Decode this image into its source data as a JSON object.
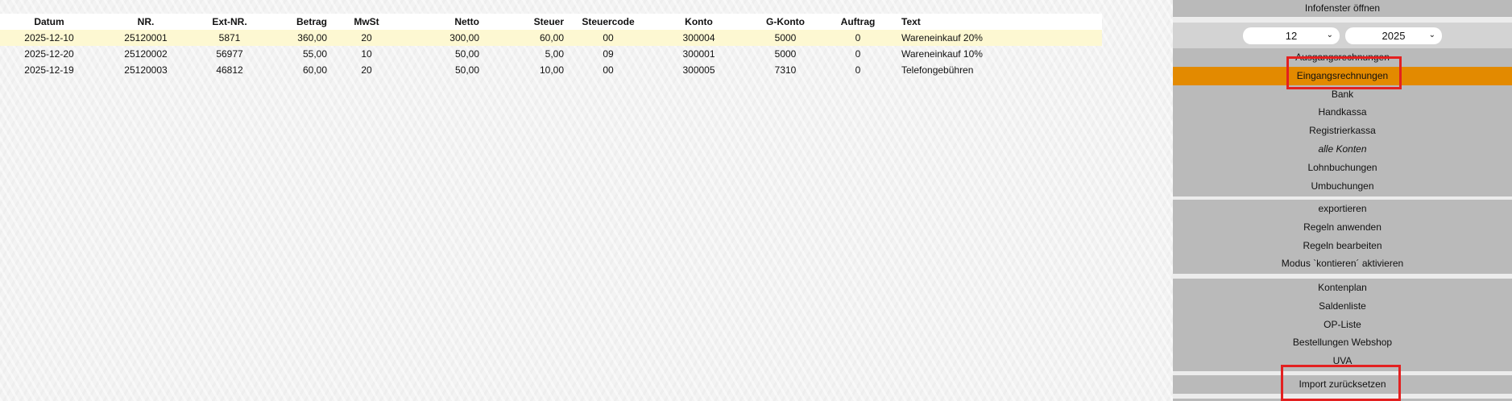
{
  "table": {
    "headers": [
      "Datum",
      "NR.",
      "Ext-NR.",
      "Betrag",
      "MwSt",
      "Netto",
      "Steuer",
      "Steuercode",
      "Konto",
      "G-Konto",
      "Auftrag",
      "Text"
    ],
    "rows": [
      [
        "2025-12-10",
        "25120001",
        "5871",
        "360,00",
        "20",
        "300,00",
        "60,00",
        "00",
        "300004",
        "5000",
        "0",
        "Wareneinkauf 20%"
      ],
      [
        "2025-12-20",
        "25120002",
        "56977",
        "55,00",
        "10",
        "50,00",
        "5,00",
        "09",
        "300001",
        "5000",
        "0",
        "Wareneinkauf 10%"
      ],
      [
        "2025-12-19",
        "25120003",
        "46812",
        "60,00",
        "20",
        "50,00",
        "10,00",
        "00",
        "300005",
        "7310",
        "0",
        "Telefongebühren"
      ]
    ],
    "selected_row": 0
  },
  "sidebar": {
    "info": "Infofenster öffnen",
    "month": "12",
    "year": "2025",
    "group1": [
      "Ausgangsrechnungen",
      "Eingangsrechnungen",
      "Bank",
      "Handkassa",
      "Registrierkassa",
      "alle Konten",
      "Lohnbuchungen",
      "Umbuchungen"
    ],
    "active": "Eingangsrechnungen",
    "group2": [
      "exportieren",
      "Regeln anwenden",
      "Regeln bearbeiten",
      "Modus `kontieren´ aktivieren"
    ],
    "group3": [
      "Kontenplan",
      "Saldenliste",
      "OP-Liste",
      "Bestellungen Webshop",
      "UVA"
    ],
    "group4": [
      "Import zurücksetzen"
    ]
  },
  "colors": {
    "active": "#e38a00",
    "highlight": "#e32020",
    "selected_row": "#fdf8d2"
  }
}
